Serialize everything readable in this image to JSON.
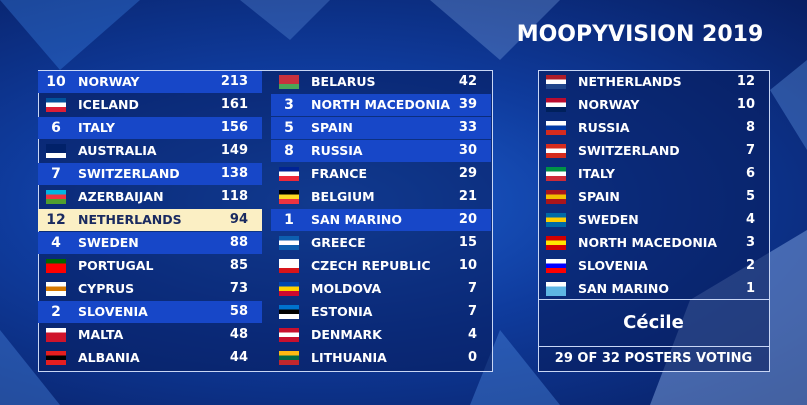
{
  "header": {
    "title": "MOOPYVISION 2019"
  },
  "scoreboard": {
    "columns": [
      [
        {
          "points": 10,
          "country": "NORWAY",
          "score": 213
        },
        {
          "country": "ICELAND",
          "score": 161
        },
        {
          "points": 6,
          "country": "ITALY",
          "score": 156
        },
        {
          "country": "AUSTRALIA",
          "score": 149
        },
        {
          "points": 7,
          "country": "SWITZERLAND",
          "score": 138
        },
        {
          "country": "AZERBAIJAN",
          "score": 118
        },
        {
          "points": 12,
          "country": "NETHERLANDS",
          "score": 94
        },
        {
          "points": 4,
          "country": "SWEDEN",
          "score": 88
        },
        {
          "country": "PORTUGAL",
          "score": 85
        },
        {
          "country": "CYPRUS",
          "score": 73
        },
        {
          "points": 2,
          "country": "SLOVENIA",
          "score": 58
        },
        {
          "country": "MALTA",
          "score": 48
        },
        {
          "country": "ALBANIA",
          "score": 44
        }
      ],
      [
        {
          "country": "BELARUS",
          "score": 42
        },
        {
          "points": 3,
          "country": "NORTH MACEDONIA",
          "score": 39
        },
        {
          "points": 5,
          "country": "SPAIN",
          "score": 33
        },
        {
          "points": 8,
          "country": "RUSSIA",
          "score": 30
        },
        {
          "country": "FRANCE",
          "score": 29
        },
        {
          "country": "BELGIUM",
          "score": 21
        },
        {
          "points": 1,
          "country": "SAN MARINO",
          "score": 20
        },
        {
          "country": "GREECE",
          "score": 15
        },
        {
          "country": "CZECH REPUBLIC",
          "score": 10
        },
        {
          "country": "MOLDOVA",
          "score": 7
        },
        {
          "country": "ESTONIA",
          "score": 7
        },
        {
          "country": "DENMARK",
          "score": 4
        },
        {
          "country": "LITHUANIA",
          "score": 0
        }
      ]
    ]
  },
  "votes": {
    "items": [
      {
        "country": "NETHERLANDS",
        "points": 12
      },
      {
        "country": "NORWAY",
        "points": 10
      },
      {
        "country": "RUSSIA",
        "points": 8
      },
      {
        "country": "SWITZERLAND",
        "points": 7
      },
      {
        "country": "ITALY",
        "points": 6
      },
      {
        "country": "SPAIN",
        "points": 5
      },
      {
        "country": "SWEDEN",
        "points": 4
      },
      {
        "country": "NORTH MACEDONIA",
        "points": 3
      },
      {
        "country": "SLOVENIA",
        "points": 2
      },
      {
        "country": "SAN MARINO",
        "points": 1
      }
    ],
    "voter": "Cécile",
    "status": "29 OF 32 POSTERS VOTING"
  }
}
